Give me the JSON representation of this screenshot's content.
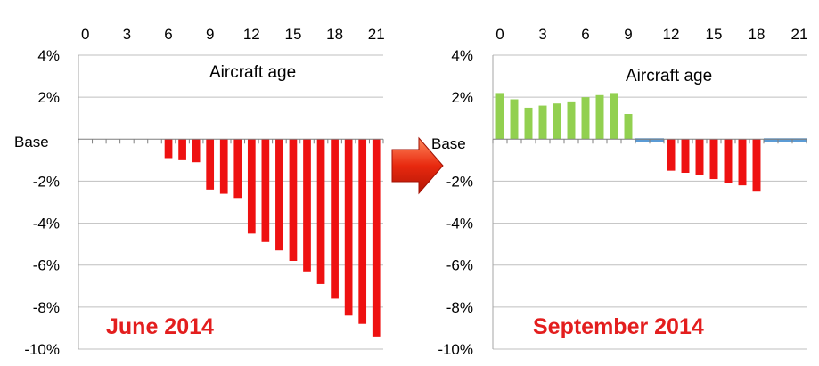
{
  "chart_data": [
    {
      "type": "bar",
      "title": "June 2014",
      "xlabel": "Aircraft age",
      "base_label": "Base",
      "x_ticks": [
        "0",
        "3",
        "6",
        "9",
        "12",
        "15",
        "18",
        "21"
      ],
      "y_ticks": [
        "4%",
        "2%",
        "",
        "-2%",
        "-4%",
        "-6%",
        "-8%",
        "-10%"
      ],
      "ylim": [
        -10,
        4
      ],
      "grid": true,
      "x": [
        0,
        1,
        2,
        3,
        4,
        5,
        6,
        7,
        8,
        9,
        10,
        11,
        12,
        13,
        14,
        15,
        16,
        17,
        18,
        19,
        20,
        21
      ],
      "values": [
        0,
        0,
        0,
        0,
        0,
        0,
        -0.9,
        -1.0,
        -1.1,
        -2.4,
        -2.6,
        -2.8,
        -4.5,
        -4.9,
        -5.3,
        -5.8,
        -6.3,
        -6.9,
        -7.6,
        -8.4,
        -8.8,
        -9.4
      ],
      "colors": {
        "negative": "#ee1111",
        "zero": "#ee1111",
        "positive": "#92d050",
        "title": "#e31e1e"
      }
    },
    {
      "type": "bar",
      "title": "September 2014",
      "xlabel": "Aircraft age",
      "base_label": "Base",
      "x_ticks": [
        "0",
        "3",
        "6",
        "9",
        "12",
        "15",
        "18",
        "21"
      ],
      "y_ticks": [
        "4%",
        "2%",
        "",
        "-2%",
        "-4%",
        "-6%",
        "-8%",
        "-10%"
      ],
      "ylim": [
        -10,
        4
      ],
      "grid": true,
      "x": [
        0,
        1,
        2,
        3,
        4,
        5,
        6,
        7,
        8,
        9,
        10,
        11,
        12,
        13,
        14,
        15,
        16,
        17,
        18,
        19,
        20,
        21
      ],
      "values": [
        2.2,
        1.9,
        1.5,
        1.6,
        1.7,
        1.8,
        2.0,
        2.1,
        2.2,
        1.2,
        -0.1,
        -0.1,
        -1.5,
        -1.6,
        -1.7,
        -1.9,
        -2.1,
        -2.2,
        -2.5,
        -0.1,
        -0.1,
        -0.1
      ],
      "colors": {
        "negative": "#ee1111",
        "zero": "#5b9bd5",
        "positive": "#92d050",
        "title": "#e31e1e"
      }
    }
  ],
  "arrow": {
    "icon": "right-arrow-icon",
    "color": "#e8290f"
  }
}
